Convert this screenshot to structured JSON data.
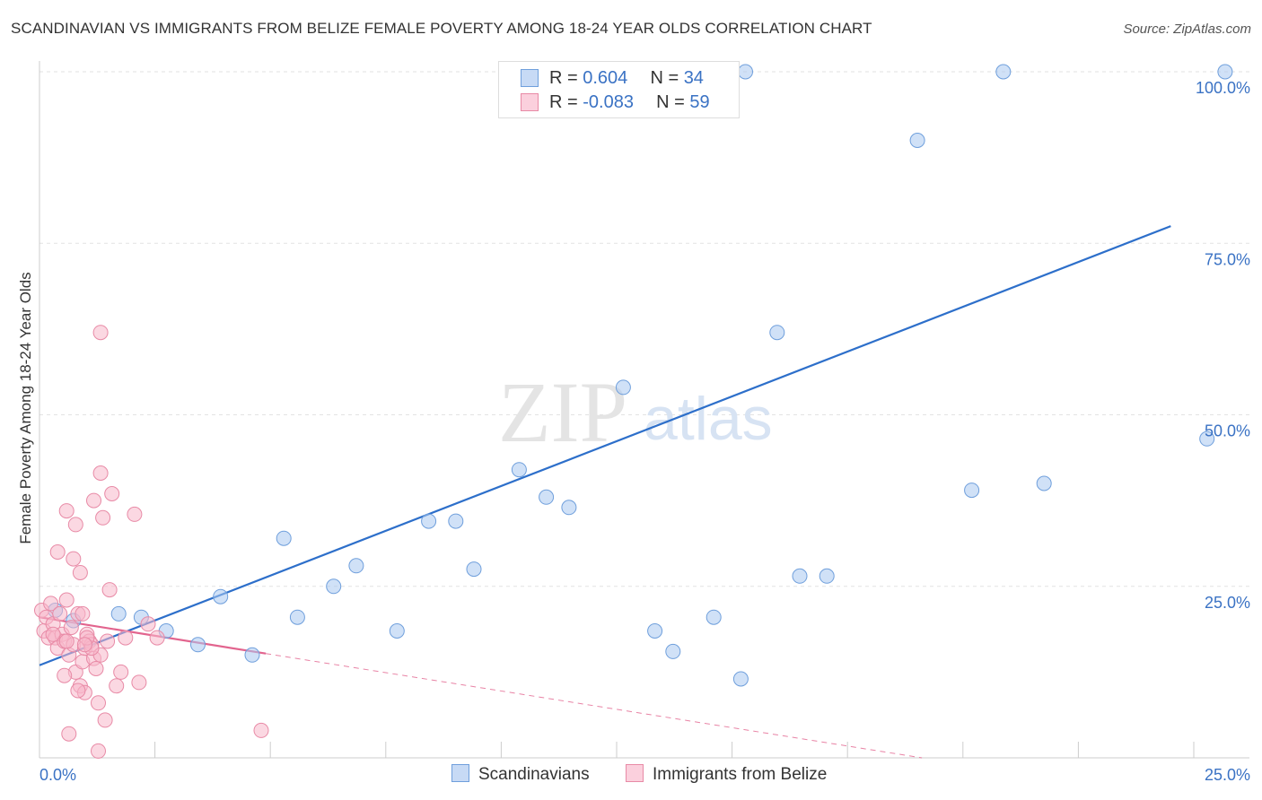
{
  "title": "SCANDINAVIAN VS IMMIGRANTS FROM BELIZE FEMALE POVERTY AMONG 18-24 YEAR OLDS CORRELATION CHART",
  "source": "Source: ZipAtlas.com",
  "watermark": {
    "zip": "ZIP",
    "atlas": "atlas"
  },
  "legend": {
    "rows": [
      {
        "r_label": "R = ",
        "r_value": "0.604",
        "n_label": "N = ",
        "n_value": "34",
        "color": "#aac8f0",
        "border": "#6f9fdc"
      },
      {
        "r_label": "R = ",
        "r_value": "-0.083",
        "n_label": "N = ",
        "n_value": "59",
        "color": "#f7b8cb",
        "border": "#e88aa6"
      }
    ]
  },
  "bottom_legend": [
    {
      "label": "Scandinavians",
      "color": "#c7daf5",
      "border": "#6f9fdc"
    },
    {
      "label": "Immigrants from Belize",
      "color": "#fbd0dd",
      "border": "#e88aa6"
    }
  ],
  "chart_data": {
    "type": "scatter",
    "title": "SCANDINAVIAN VS IMMIGRANTS FROM BELIZE FEMALE POVERTY AMONG 18-24 YEAR OLDS CORRELATION CHART",
    "xlabel": "",
    "ylabel": "Female Poverty Among 18-24 Year Olds",
    "xlim": [
      0,
      25
    ],
    "ylim": [
      0,
      100
    ],
    "x_tick_labels": [
      {
        "value": 0,
        "label": "0.0%"
      },
      {
        "value": 25,
        "label": "25.0%"
      }
    ],
    "y_tick_labels": [
      {
        "value": 25,
        "label": "25.0%"
      },
      {
        "value": 50,
        "label": "50.0%"
      },
      {
        "value": 75,
        "label": "75.0%"
      },
      {
        "value": 100,
        "label": "100.0%"
      }
    ],
    "series": [
      {
        "name": "Scandinavians",
        "color": "#aac8f0",
        "stroke": "#6f9fdc",
        "trend_color": "#2d6fca",
        "trend": {
          "x0": 0,
          "y0": 13.5,
          "x1": 25,
          "y1": 77.5
        },
        "points": [
          [
            0.35,
            21.5
          ],
          [
            0.75,
            20.0
          ],
          [
            1.75,
            21.0
          ],
          [
            2.25,
            20.5
          ],
          [
            2.8,
            18.5
          ],
          [
            3.5,
            16.5
          ],
          [
            4.0,
            23.5
          ],
          [
            4.7,
            15.0
          ],
          [
            5.4,
            32.0
          ],
          [
            5.7,
            20.5
          ],
          [
            6.5,
            25.0
          ],
          [
            7.0,
            28.0
          ],
          [
            7.9,
            18.5
          ],
          [
            8.6,
            34.5
          ],
          [
            9.2,
            34.5
          ],
          [
            9.6,
            27.5
          ],
          [
            10.6,
            42.0
          ],
          [
            11.2,
            38.0
          ],
          [
            11.7,
            36.5
          ],
          [
            12.9,
            54.0
          ],
          [
            13.6,
            18.5
          ],
          [
            14.0,
            15.5
          ],
          [
            14.9,
            20.5
          ],
          [
            15.5,
            11.5
          ],
          [
            16.3,
            62.0
          ],
          [
            16.8,
            26.5
          ],
          [
            17.4,
            26.5
          ],
          [
            15.6,
            100.0
          ],
          [
            19.4,
            90.0
          ],
          [
            20.6,
            39.0
          ],
          [
            21.3,
            100.0
          ],
          [
            22.2,
            40.0
          ],
          [
            25.8,
            46.5
          ],
          [
            26.2,
            100.0
          ]
        ]
      },
      {
        "name": "Immigrants from Belize",
        "color": "#f7b8cb",
        "stroke": "#e88aa6",
        "trend_color": "#e2648e",
        "trend": {
          "x0": 0,
          "y0": 20.5,
          "x1": 5,
          "y1": 15.2
        },
        "trend_dashed": {
          "x0": 5,
          "y0": 15.2,
          "x1": 19.5,
          "y1": 0
        },
        "points": [
          [
            0.05,
            21.5
          ],
          [
            0.1,
            18.5
          ],
          [
            0.15,
            20.5
          ],
          [
            0.2,
            17.5
          ],
          [
            0.25,
            22.5
          ],
          [
            0.3,
            19.5
          ],
          [
            0.35,
            17.5
          ],
          [
            0.4,
            16.0
          ],
          [
            0.45,
            21.0
          ],
          [
            0.5,
            18.0
          ],
          [
            0.55,
            17.0
          ],
          [
            0.6,
            23.0
          ],
          [
            0.65,
            15.0
          ],
          [
            0.7,
            19.0
          ],
          [
            0.75,
            16.5
          ],
          [
            0.8,
            12.5
          ],
          [
            0.85,
            21.0
          ],
          [
            0.9,
            10.5
          ],
          [
            0.95,
            14.0
          ],
          [
            1.0,
            16.0
          ],
          [
            1.05,
            18.0
          ],
          [
            1.1,
            17.0
          ],
          [
            1.15,
            16.5
          ],
          [
            1.2,
            14.5
          ],
          [
            1.25,
            13.0
          ],
          [
            1.3,
            8.0
          ],
          [
            1.35,
            15.0
          ],
          [
            1.4,
            35.0
          ],
          [
            1.45,
            5.5
          ],
          [
            1.5,
            17.0
          ],
          [
            1.55,
            24.5
          ],
          [
            1.6,
            38.5
          ],
          [
            1.7,
            10.5
          ],
          [
            1.8,
            12.5
          ],
          [
            1.9,
            17.5
          ],
          [
            2.1,
            35.5
          ],
          [
            2.2,
            11.0
          ],
          [
            2.4,
            19.5
          ],
          [
            2.6,
            17.5
          ],
          [
            0.6,
            36.0
          ],
          [
            0.4,
            30.0
          ],
          [
            0.8,
            34.0
          ],
          [
            0.75,
            29.0
          ],
          [
            0.9,
            27.0
          ],
          [
            1.2,
            37.5
          ],
          [
            1.35,
            41.5
          ],
          [
            1.35,
            62.0
          ],
          [
            0.95,
            21.0
          ],
          [
            1.0,
            9.5
          ],
          [
            1.15,
            16.0
          ],
          [
            0.65,
            3.5
          ],
          [
            0.3,
            18.0
          ],
          [
            0.55,
            12.0
          ],
          [
            0.85,
            9.8
          ],
          [
            1.05,
            17.5
          ],
          [
            1.3,
            1.0
          ],
          [
            4.9,
            4.0
          ],
          [
            1.0,
            16.5
          ],
          [
            0.6,
            17.0
          ]
        ]
      }
    ]
  }
}
